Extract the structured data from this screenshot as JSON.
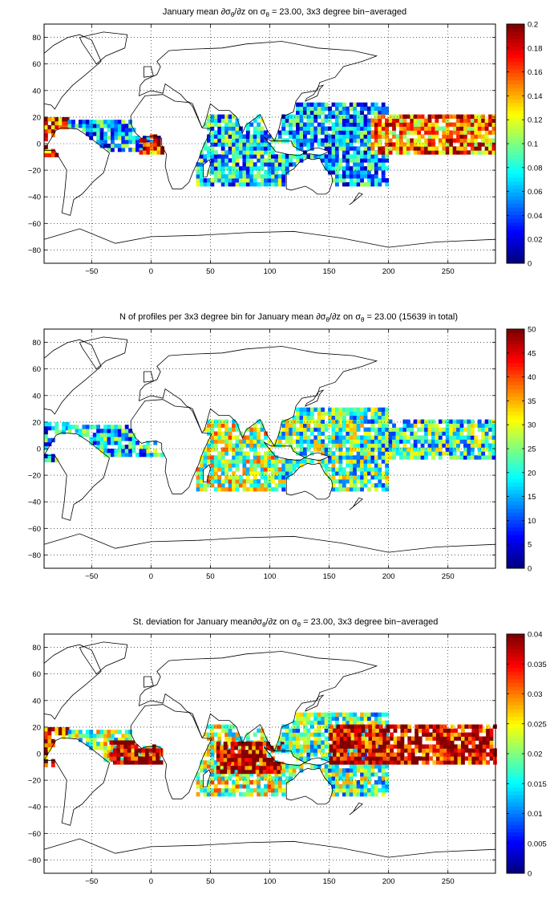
{
  "figure": {
    "colormap": "jet",
    "land_color": "#ffffff",
    "coast_color": "#000000",
    "grid_color": "#000000"
  },
  "chart_data": [
    {
      "type": "heatmap",
      "title": "January mean ∂σθ/∂z on σθ = 23.00, 3x3 degree bin−averaged",
      "title_parts": {
        "lead": "January mean ∂σ",
        "sub1": "θ",
        "mid": "/∂z on σ",
        "sub2": "θ",
        "tail": " = 23.00, 3x3 degree bin−averaged"
      },
      "xlim": [
        -90,
        290
      ],
      "ylim": [
        -90,
        90
      ],
      "xticks": [
        -50,
        0,
        50,
        100,
        150,
        200,
        250
      ],
      "yticks": [
        80,
        60,
        40,
        20,
        0,
        -20,
        -40,
        -60,
        -80
      ],
      "grid": true,
      "bin_size_deg": 3,
      "clim": [
        0,
        0.2
      ],
      "cbar_ticks": [
        "0.2",
        "0.18",
        "0.16",
        "0.14",
        "0.12",
        "0.1",
        "0.08",
        "0.06",
        "0.04",
        "0.02",
        "0"
      ],
      "regions": [
        {
          "name": "east-pacific",
          "lon": [
            -90,
            -70
          ],
          "lat": [
            -10,
            20
          ],
          "level": 0.85
        },
        {
          "name": "tropical-atlantic",
          "lon": [
            -70,
            12
          ],
          "lat": [
            -6,
            16
          ],
          "level": 0.3
        },
        {
          "name": "gulf-of-guinea",
          "lon": [
            -10,
            12
          ],
          "lat": [
            -8,
            6
          ],
          "level": 0.85
        },
        {
          "name": "indian-ocean",
          "lon": [
            38,
            125
          ],
          "lat": [
            -32,
            22
          ],
          "level": 0.35
        },
        {
          "name": "west-pacific",
          "lon": [
            110,
            200
          ],
          "lat": [
            -32,
            30
          ],
          "level": 0.3
        },
        {
          "name": "central-pacific-band",
          "lon": [
            185,
            290
          ],
          "lat": [
            -8,
            22
          ],
          "level": 0.75
        }
      ]
    },
    {
      "type": "heatmap",
      "title": "N of profiles per 3x3 degree bin for January mean ∂σθ/∂z on σθ = 23.00 (15639 in total)",
      "title_parts": {
        "lead": "N of profiles per 3x3 degree bin for January mean ∂σ",
        "sub1": "θ",
        "mid": "/∂z on σ",
        "sub2": "θ",
        "tail": " = 23.00 (15639 in total)"
      },
      "total_profiles": 15639,
      "xlim": [
        -90,
        290
      ],
      "ylim": [
        -90,
        90
      ],
      "xticks": [
        -50,
        0,
        50,
        100,
        150,
        200,
        250
      ],
      "yticks": [
        80,
        60,
        40,
        20,
        0,
        -20,
        -40,
        -60,
        -80
      ],
      "grid": true,
      "bin_size_deg": 3,
      "clim": [
        0,
        50
      ],
      "cbar_ticks": [
        "50",
        "45",
        "40",
        "35",
        "30",
        "25",
        "20",
        "15",
        "10",
        "5",
        "0"
      ],
      "regions": [
        {
          "name": "east-pacific",
          "lon": [
            -90,
            -70
          ],
          "lat": [
            -10,
            20
          ],
          "level": 0.3
        },
        {
          "name": "tropical-atlantic",
          "lon": [
            -70,
            12
          ],
          "lat": [
            -6,
            16
          ],
          "level": 0.35
        },
        {
          "name": "indian-ocean",
          "lon": [
            38,
            125
          ],
          "lat": [
            -32,
            22
          ],
          "level": 0.55
        },
        {
          "name": "west-pacific",
          "lon": [
            110,
            200
          ],
          "lat": [
            -32,
            30
          ],
          "level": 0.45
        },
        {
          "name": "central-pacific-band",
          "lon": [
            185,
            290
          ],
          "lat": [
            -8,
            22
          ],
          "level": 0.4
        }
      ]
    },
    {
      "type": "heatmap",
      "title": "St. deviation for January mean∂σθ/∂z on σθ = 23.00, 3x3 degree bin−averaged",
      "title_parts": {
        "lead": "St. deviation for January mean∂σ",
        "sub1": "θ",
        "mid": "/∂z on σ",
        "sub2": "θ",
        "tail": " = 23.00, 3x3 degree bin−averaged"
      },
      "xlim": [
        -90,
        290
      ],
      "ylim": [
        -90,
        90
      ],
      "xticks": [
        -50,
        0,
        50,
        100,
        150,
        200,
        250
      ],
      "yticks": [
        80,
        60,
        40,
        20,
        0,
        -20,
        -40,
        -60,
        -80
      ],
      "grid": true,
      "bin_size_deg": 3,
      "clim": [
        0,
        0.04
      ],
      "cbar_ticks": [
        "0.04",
        "0.035",
        "0.03",
        "0.025",
        "0.02",
        "0.015",
        "0.01",
        "0.005",
        "0"
      ],
      "regions": [
        {
          "name": "east-pacific",
          "lon": [
            -90,
            -70
          ],
          "lat": [
            -10,
            20
          ],
          "level": 0.9
        },
        {
          "name": "tropical-atlantic",
          "lon": [
            -70,
            12
          ],
          "lat": [
            -6,
            16
          ],
          "level": 0.5
        },
        {
          "name": "gulf-of-guinea",
          "lon": [
            -35,
            12
          ],
          "lat": [
            -8,
            8
          ],
          "level": 0.97
        },
        {
          "name": "indian-ocean",
          "lon": [
            38,
            125
          ],
          "lat": [
            -32,
            22
          ],
          "level": 0.55
        },
        {
          "name": "indian-core",
          "lon": [
            55,
            110
          ],
          "lat": [
            -15,
            8
          ],
          "level": 0.95
        },
        {
          "name": "west-pacific",
          "lon": [
            110,
            200
          ],
          "lat": [
            -32,
            30
          ],
          "level": 0.45
        },
        {
          "name": "central-pacific-band",
          "lon": [
            150,
            290
          ],
          "lat": [
            -8,
            22
          ],
          "level": 0.92
        }
      ]
    }
  ]
}
